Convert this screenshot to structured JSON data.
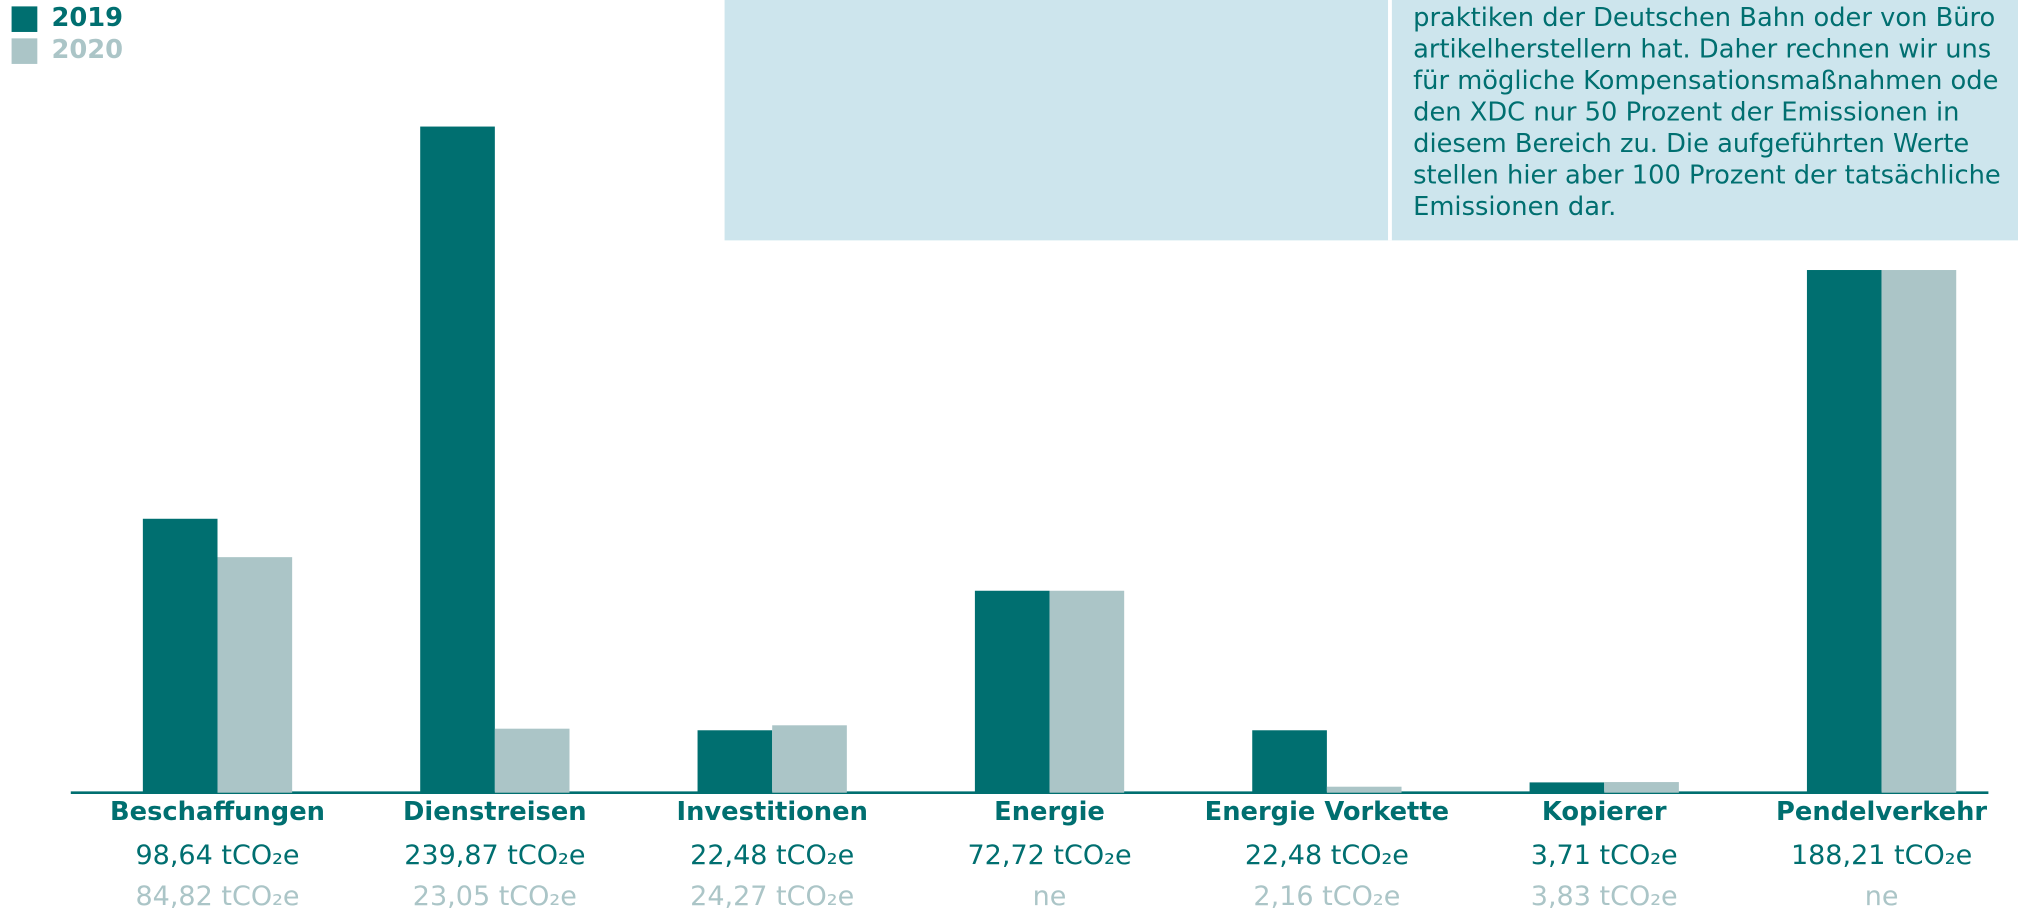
{
  "chart_data": {
    "type": "bar",
    "categories": [
      "Beschaffungen",
      "Dienstreisen",
      "Investitionen",
      "Energie",
      "Energie Vorkette",
      "Kopierer",
      "Pendelverkehr"
    ],
    "series": [
      {
        "name": "2019",
        "color": "#006f70",
        "values": [
          98.64,
          239.87,
          22.48,
          72.72,
          22.48,
          3.71,
          188.21
        ],
        "value_labels": [
          "98,64 tCO₂e",
          "239,87 tCO₂e",
          "22,48 tCO₂e",
          "72,72 tCO₂e",
          "22,48 tCO₂e",
          "3,71 tCO₂e",
          "188,21 tCO₂e"
        ]
      },
      {
        "name": "2020",
        "color": "#abc5c7",
        "values": [
          84.82,
          23.05,
          24.27,
          72.72,
          2.16,
          3.83,
          188.21
        ],
        "value_labels": [
          "84,82 tCO₂e",
          "23,05 tCO₂e",
          "24,27 tCO₂e",
          "ne",
          "2,16 tCO₂e",
          "3,83 tCO₂e",
          "ne"
        ]
      }
    ],
    "ylim": [
      0,
      240
    ],
    "annotation": [
      "praktiken der Deutschen Bahn oder von Büro",
      "artikelherstellern hat. Daher rechnen wir uns",
      "für mögliche Kompensationsmaßnahmen ode",
      "den XDC nur 50 Prozent der Emissionen in",
      "diesem Bereich zu. Die aufgeführten Werte",
      "stellen hier aber 100 Prozent der tatsächliche",
      "Emissionen dar."
    ]
  }
}
